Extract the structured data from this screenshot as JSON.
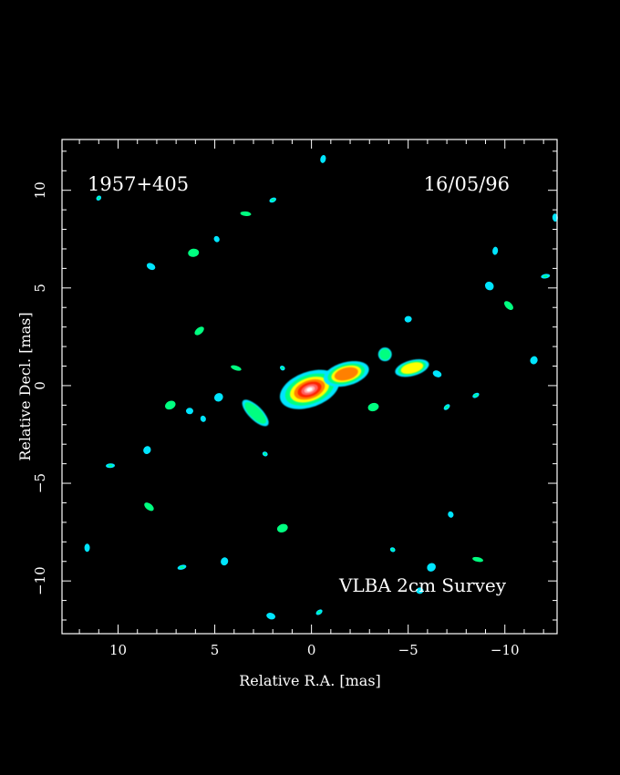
{
  "chart_data": {
    "type": "heatmap",
    "xlabel": "Relative R.A. [mas]",
    "ylabel": "Relative Decl. [mas]",
    "xlim": [
      12.9,
      -12.7
    ],
    "ylim": [
      -12.7,
      12.6
    ],
    "xticks": [
      10,
      5,
      0,
      -5,
      -10
    ],
    "yticks": [
      10,
      5,
      0,
      -5,
      -10
    ],
    "xtick_labels": [
      "10",
      "5",
      "0",
      "−5",
      "−10"
    ],
    "ytick_labels": [
      "10",
      "5",
      "0",
      "−5",
      "−10"
    ],
    "annotations": {
      "source": "1957+405",
      "date": "16/05/96",
      "survey": "VLBA 2cm Survey"
    },
    "colors": {
      "background": "#000000",
      "frame": "#ffffff",
      "low": "#00e5ff",
      "mid_low": "#00ff80",
      "mid": "#ffff00",
      "mid_high": "#ff8000",
      "high": "#ff2000",
      "peak": "#ffffff"
    },
    "components": [
      {
        "x": 0.1,
        "y": -0.2,
        "peak": 1.0,
        "sx": 1.6,
        "sy": 0.9,
        "angle": 20
      },
      {
        "x": -1.8,
        "y": 0.6,
        "peak": 0.55,
        "sx": 1.2,
        "sy": 0.6,
        "angle": 15
      },
      {
        "x": -5.2,
        "y": 0.9,
        "peak": 0.4,
        "sx": 0.9,
        "sy": 0.4,
        "angle": 15
      },
      {
        "x": -3.8,
        "y": 1.6,
        "peak": 0.15,
        "sx": 0.35,
        "sy": 0.35,
        "angle": 0
      },
      {
        "x": 2.9,
        "y": -1.4,
        "peak": 0.3,
        "sx": 0.9,
        "sy": 0.35,
        "angle": -45
      }
    ],
    "noise_spots": [
      [
        11.0,
        9.6
      ],
      [
        6.1,
        6.8
      ],
      [
        8.3,
        6.1
      ],
      [
        2.0,
        9.5
      ],
      [
        -0.6,
        11.6
      ],
      [
        5.8,
        2.8
      ],
      [
        10.4,
        -4.1
      ],
      [
        8.5,
        -3.3
      ],
      [
        5.6,
        -1.7
      ],
      [
        3.9,
        0.9
      ],
      [
        4.8,
        -0.6
      ],
      [
        6.3,
        -1.3
      ],
      [
        1.5,
        0.9
      ],
      [
        -3.2,
        -1.1
      ],
      [
        -6.5,
        0.6
      ],
      [
        -8.5,
        -0.5
      ],
      [
        -9.5,
        6.9
      ],
      [
        -10.2,
        4.1
      ],
      [
        -12.1,
        5.6
      ],
      [
        -11.5,
        1.3
      ],
      [
        -7.2,
        -6.6
      ],
      [
        -8.6,
        -8.9
      ],
      [
        -6.2,
        -9.3
      ],
      [
        -5.6,
        -10.5
      ],
      [
        -4.2,
        -8.4
      ],
      [
        1.5,
        -7.3
      ],
      [
        2.1,
        -11.8
      ],
      [
        -0.4,
        -11.6
      ],
      [
        11.6,
        -8.3
      ],
      [
        8.4,
        -6.2
      ],
      [
        6.7,
        -9.3
      ],
      [
        4.5,
        -9.0
      ],
      [
        4.9,
        7.5
      ],
      [
        3.4,
        8.8
      ],
      [
        -9.2,
        5.1
      ],
      [
        -5.0,
        3.4
      ],
      [
        2.4,
        -3.5
      ],
      [
        7.3,
        -1.0
      ],
      [
        -1.5,
        0.3
      ],
      [
        -7.0,
        -1.1
      ],
      [
        -12.6,
        8.6
      ]
    ]
  }
}
